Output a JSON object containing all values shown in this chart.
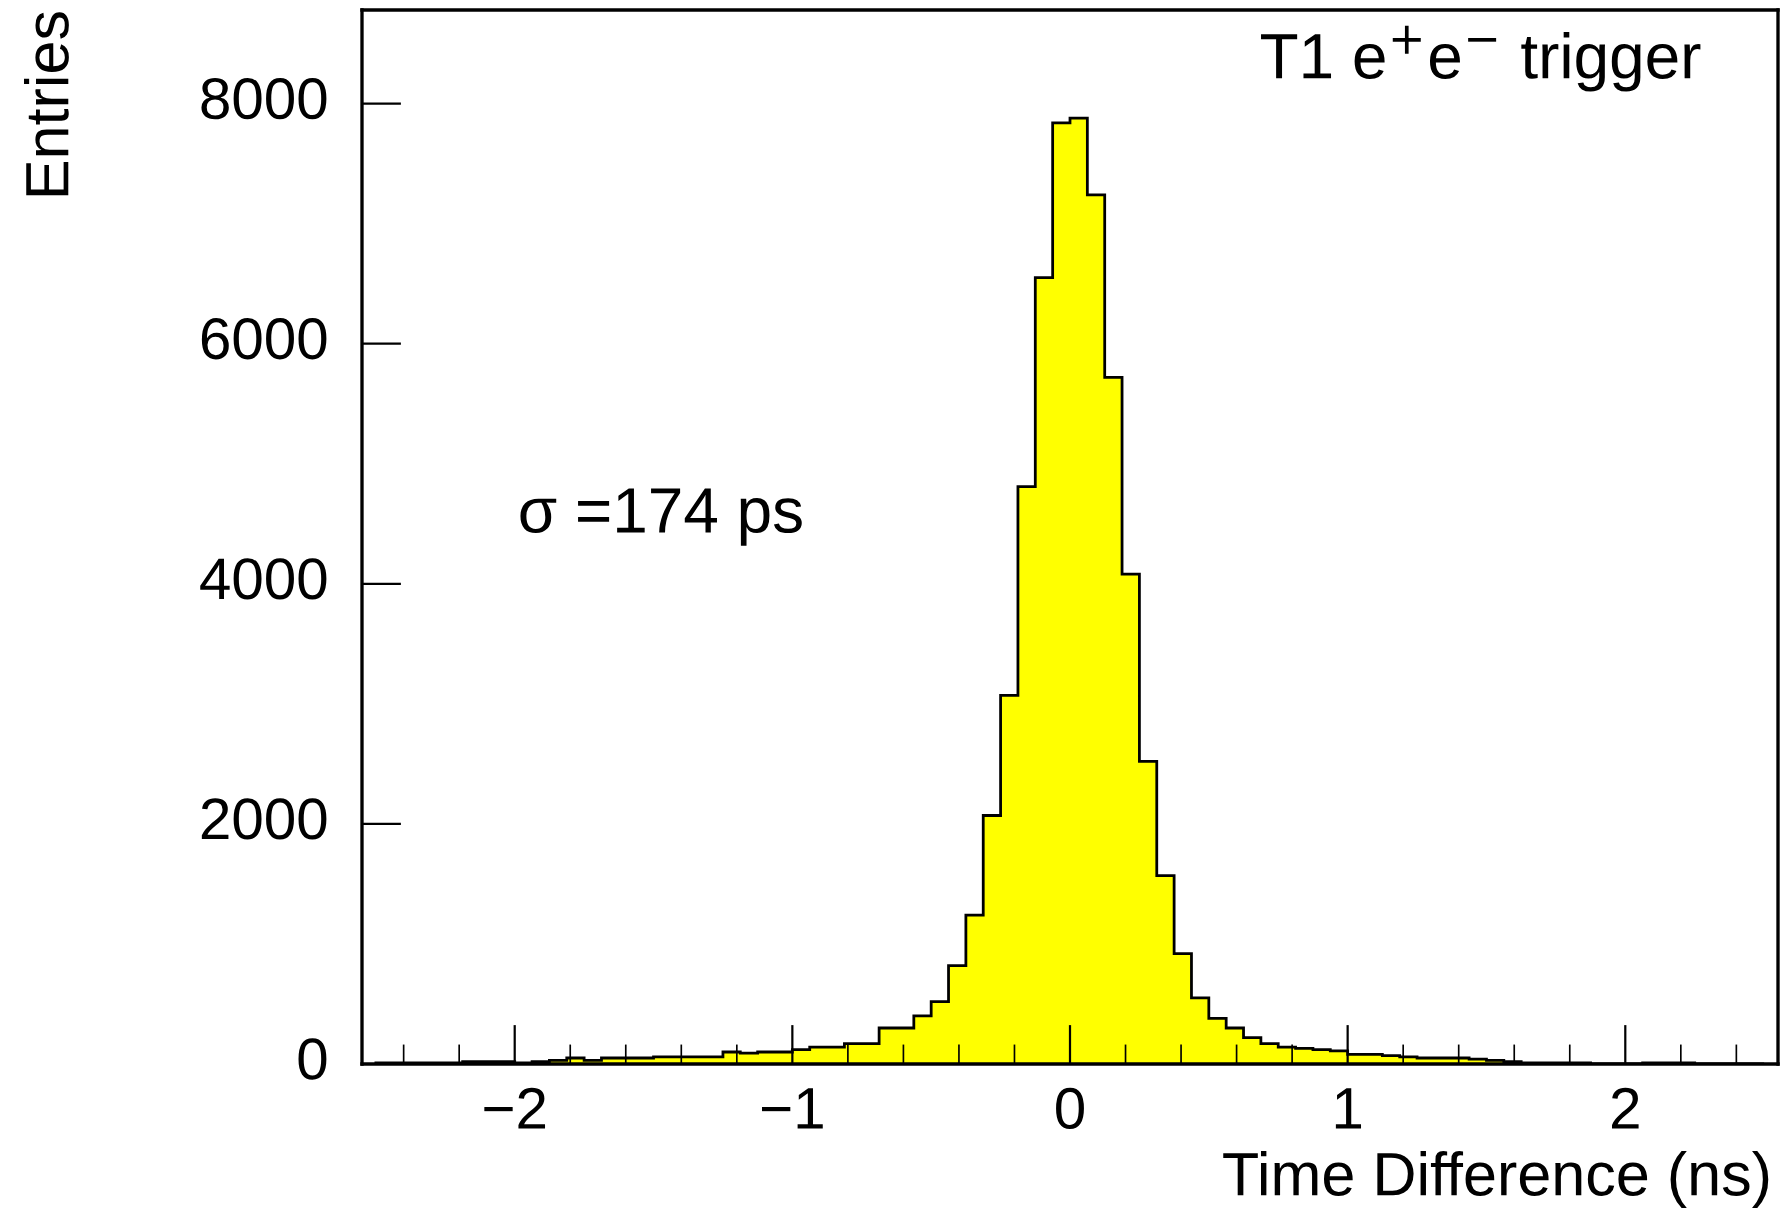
{
  "chart_data": {
    "type": "histogram",
    "title": "T1 e$^{+}$e$^{−}$ trigger",
    "xlabel": "Time Difference (ns)",
    "ylabel": "Entries",
    "annotations": [
      "σ =174 ps"
    ],
    "bins": [
      -2.5,
      -2.4375,
      -2.375,
      -2.3125,
      -2.25,
      -2.1875,
      -2.125,
      -2.0625,
      -2,
      -1.9375,
      -1.875,
      -1.8125,
      -1.75,
      -1.6875,
      -1.625,
      -1.5625,
      -1.5,
      -1.4375,
      -1.375,
      -1.3125,
      -1.25,
      -1.1875,
      -1.125,
      -1.0625,
      -1,
      -0.9375,
      -0.875,
      -0.8125,
      -0.75,
      -0.6875,
      -0.625,
      -0.5625,
      -0.5,
      -0.4375,
      -0.375,
      -0.3125,
      -0.25,
      -0.1875,
      -0.125,
      -0.0625,
      0,
      0.0625,
      0.125,
      0.1875,
      0.25,
      0.3125,
      0.375,
      0.4375,
      0.5,
      0.5625,
      0.625,
      0.6875,
      0.75,
      0.8125,
      0.875,
      0.9375,
      1,
      1.0625,
      1.125,
      1.1875,
      1.25,
      1.3125,
      1.375,
      1.4375,
      1.5,
      1.5625,
      1.625,
      1.6875,
      1.75,
      1.8125,
      1.875,
      1.9375,
      2,
      2.0625,
      2.125,
      2.1875,
      2.25,
      2.3125,
      2.375,
      2.4375,
      2.5
    ],
    "values": [
      10,
      10,
      10,
      10,
      10,
      20,
      20,
      20,
      10,
      20,
      30,
      50,
      30,
      50,
      50,
      50,
      60,
      60,
      60,
      60,
      100,
      90,
      100,
      100,
      120,
      140,
      140,
      170,
      170,
      300,
      300,
      400,
      520,
      820,
      1240,
      2070,
      3070,
      4810,
      6550,
      7840,
      7880,
      7240,
      5720,
      4080,
      2520,
      1570,
      920,
      550,
      380,
      300,
      220,
      170,
      140,
      130,
      120,
      110,
      80,
      80,
      70,
      60,
      50,
      50,
      50,
      40,
      30,
      20,
      10,
      10,
      10,
      10,
      0,
      0,
      0,
      10,
      10,
      10,
      0,
      0,
      0,
      0
    ],
    "color": "#ffff00",
    "xlim": [
      -2.55,
      2.55
    ],
    "xticks": [
      {
        "value": -2,
        "label": "−2"
      },
      {
        "value": -1,
        "label": "−1"
      },
      0,
      1,
      2
    ],
    "ylim": [
      0,
      8780
    ],
    "yticks": [
      0,
      2000,
      4000,
      6000,
      8000
    ],
    "grid": false,
    "legend": false
  }
}
